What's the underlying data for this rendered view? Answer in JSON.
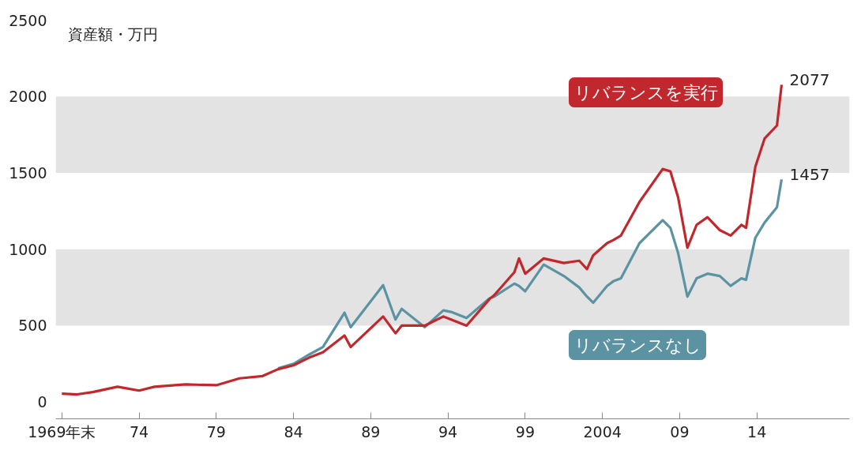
{
  "chart_data": {
    "type": "line",
    "ylabel": "資産額・万円",
    "x": [
      1969.0,
      1970.0,
      1971.0,
      1972.6,
      1974.0,
      1975.0,
      1977.0,
      1979.0,
      1980.5,
      1982.0,
      1983.0,
      1984.0,
      1985.0,
      1985.9,
      1987.3,
      1987.7,
      1989.8,
      1990.6,
      1991.0,
      1992.5,
      1993.7,
      1994.2,
      1995.2,
      1996.7,
      1997.0,
      1998.3,
      1998.6,
      1999.0,
      2000.2,
      2001.5,
      2002.5,
      2003.0,
      2003.4,
      2004.3,
      2004.7,
      2005.2,
      2006.4,
      2007.9,
      2008.4,
      2008.9,
      2009.5,
      2010.1,
      2010.8,
      2011.6,
      2012.3,
      2013.0,
      2013.3,
      2013.9,
      2014.5,
      2015.3,
      2015.6
    ],
    "series": [
      {
        "name": "リバランスを実行",
        "color": "#c0282d",
        "values": [
          55,
          50,
          65,
          100,
          75,
          100,
          115,
          110,
          155,
          170,
          215,
          240,
          290,
          325,
          435,
          360,
          560,
          450,
          500,
          500,
          560,
          540,
          500,
          675,
          700,
          850,
          940,
          840,
          940,
          910,
          925,
          870,
          960,
          1040,
          1060,
          1090,
          1310,
          1525,
          1510,
          1340,
          1010,
          1160,
          1210,
          1125,
          1090,
          1160,
          1140,
          1540,
          1725,
          1810,
          2077
        ],
        "value_labels": [
          null,
          null,
          null,
          null,
          null,
          null,
          null,
          null,
          null,
          null,
          null,
          null,
          null,
          null,
          null,
          null,
          null,
          null,
          null,
          null,
          null,
          null,
          null,
          null,
          null,
          null,
          null,
          null,
          null,
          null,
          null,
          null,
          null,
          null,
          null,
          null,
          null,
          null,
          null,
          null,
          null,
          null,
          null,
          null,
          null,
          null,
          null,
          null,
          null,
          null,
          "2077"
        ]
      },
      {
        "name": "リバランスなし",
        "color": "#5b93a3",
        "values": [
          null,
          null,
          null,
          null,
          null,
          null,
          null,
          null,
          null,
          null,
          220,
          250,
          310,
          360,
          585,
          490,
          765,
          540,
          610,
          490,
          600,
          590,
          550,
          680,
          690,
          775,
          760,
          725,
          900,
          825,
          750,
          690,
          650,
          760,
          790,
          810,
          1040,
          1190,
          1140,
          975,
          690,
          810,
          840,
          825,
          760,
          810,
          800,
          1075,
          1175,
          1275,
          1457
        ],
        "value_labels": [
          null,
          null,
          null,
          null,
          null,
          null,
          null,
          null,
          null,
          null,
          null,
          null,
          null,
          null,
          null,
          null,
          null,
          null,
          null,
          null,
          null,
          null,
          null,
          null,
          null,
          null,
          null,
          null,
          null,
          null,
          null,
          null,
          null,
          null,
          null,
          null,
          null,
          null,
          null,
          null,
          null,
          null,
          null,
          null,
          null,
          null,
          null,
          null,
          null,
          null,
          "1457"
        ]
      }
    ],
    "xlim": [
      1968.6,
      2020
    ],
    "xticks": [
      {
        "value": 1969,
        "label": "1969年末"
      },
      {
        "value": 1974,
        "label": "74"
      },
      {
        "value": 1979,
        "label": "79"
      },
      {
        "value": 1984,
        "label": "84"
      },
      {
        "value": 1989,
        "label": "89"
      },
      {
        "value": 1994,
        "label": "94"
      },
      {
        "value": 1999,
        "label": "99"
      },
      2004,
      {
        "value": 2009,
        "label": "09"
      },
      {
        "value": 2014,
        "label": "14"
      }
    ],
    "ylim": [
      -110,
      2500
    ],
    "yticks": [
      0,
      500,
      1000,
      1500,
      2000,
      2500
    ],
    "bands": [
      {
        "axis": "y",
        "from": 500,
        "to": 1000,
        "color": "#e3e3e3"
      },
      {
        "axis": "y",
        "from": 1500,
        "to": 2000,
        "color": "#e3e3e3"
      }
    ],
    "grid": false,
    "legend": false,
    "marker": "none",
    "line_style": "solid"
  }
}
